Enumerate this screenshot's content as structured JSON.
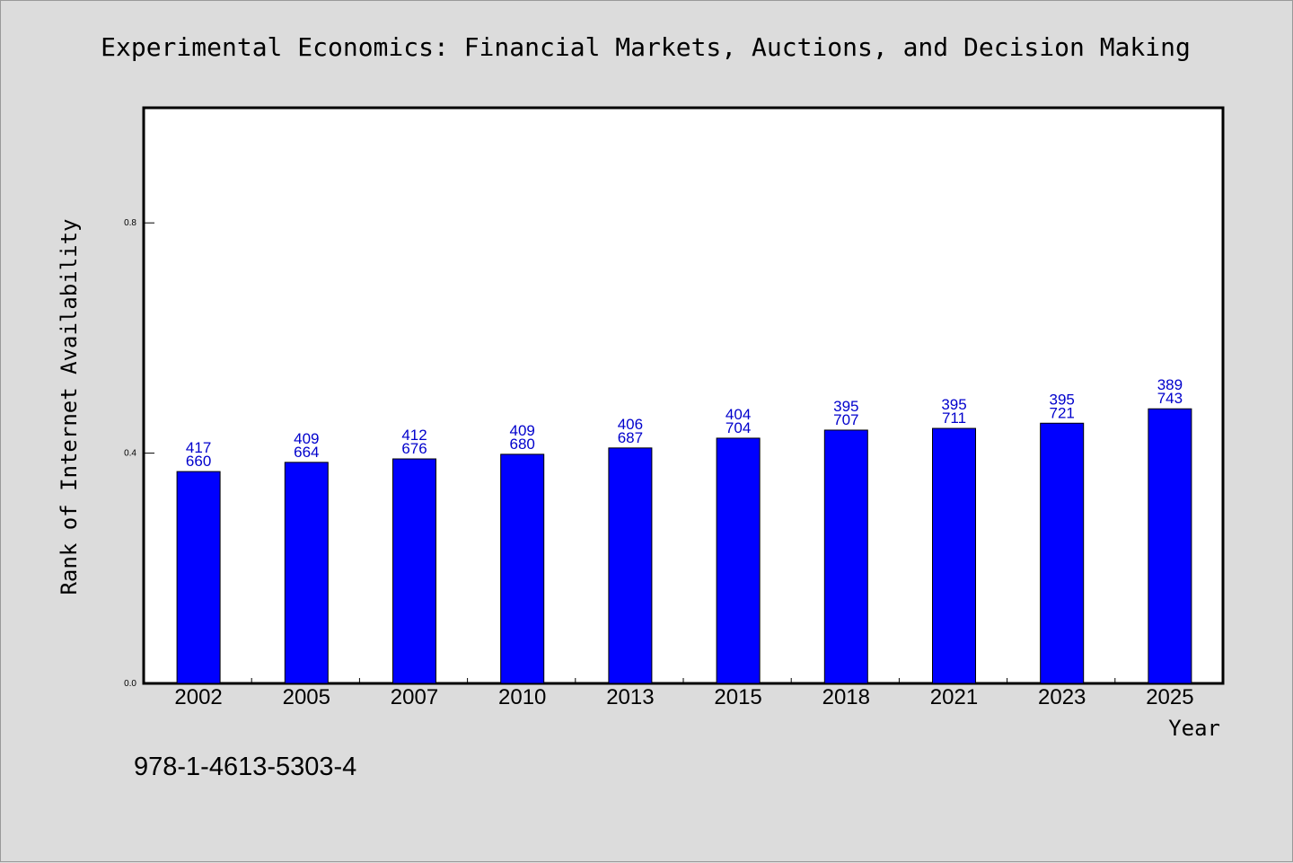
{
  "chart_data": {
    "type": "bar",
    "title": "Experimental Economics: Financial Markets, Auctions, and Decision Making",
    "xlabel": "Year",
    "ylabel": "Rank of Internet Availability",
    "categories": [
      "2002",
      "2005",
      "2007",
      "2010",
      "2013",
      "2015",
      "2018",
      "2021",
      "2023",
      "2025"
    ],
    "values": [
      0.368,
      0.384,
      0.39,
      0.398,
      0.409,
      0.426,
      0.44,
      0.443,
      0.452,
      0.477
    ],
    "labels_top": [
      "417",
      "409",
      "412",
      "409",
      "406",
      "404",
      "395",
      "395",
      "395",
      "389"
    ],
    "labels_bottom": [
      "660",
      "664",
      "676",
      "680",
      "687",
      "704",
      "707",
      "711",
      "721",
      "743"
    ],
    "ylim": [
      0.0,
      1.0
    ],
    "yticks": [
      0.0,
      0.4,
      0.8
    ],
    "ytick_labels": [
      "0.0",
      "0.4",
      "0.8"
    ],
    "grid": false,
    "colors": {
      "bar": "#0000ff",
      "label": "#0000cc",
      "background": "#dcdcdc",
      "plot_area": "#ffffff"
    }
  },
  "footer": {
    "isbn": "978-1-4613-5303-4"
  }
}
